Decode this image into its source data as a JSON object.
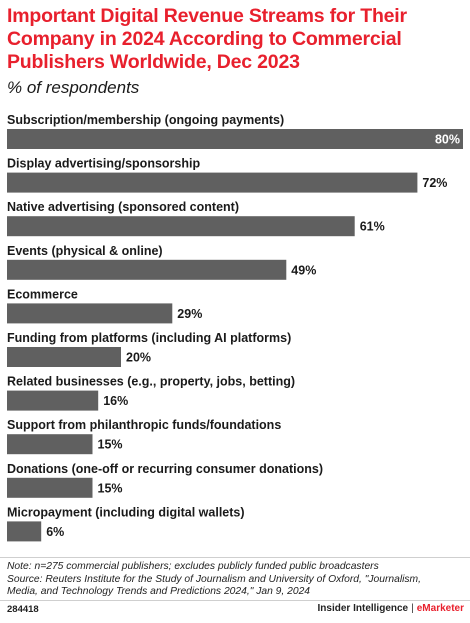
{
  "title": "Important Digital Revenue Streams for Their Company in 2024 According to Commercial Publishers Worldwide, Dec 2023",
  "subtitle": "% of respondents",
  "colors": {
    "title": "#e8202d",
    "bar": "#606060",
    "label": "#1a1a1a",
    "inside_value": "#ffffff"
  },
  "chart_data": {
    "type": "bar",
    "orientation": "horizontal",
    "categories": [
      "Subscription/membership (ongoing payments)",
      "Display advertising/sponsorship",
      "Native advertising (sponsored content)",
      "Events (physical & online)",
      "Ecommerce",
      "Funding from platforms (including AI platforms)",
      "Related businesses (e.g., property, jobs, betting)",
      "Support from philanthropic funds/foundations",
      "Donations (one-off or recurring consumer donations)",
      "Micropayment (including digital wallets)"
    ],
    "values": [
      80,
      72,
      61,
      49,
      29,
      20,
      16,
      15,
      15,
      6
    ],
    "value_labels": [
      "80%",
      "72%",
      "61%",
      "49%",
      "29%",
      "20%",
      "16%",
      "15%",
      "15%",
      "6%"
    ],
    "xlim": [
      0,
      80
    ]
  },
  "footer": {
    "note": "Note: n=275 commercial publishers; excludes publicly funded public broadcasters",
    "source_line1": "Source: Reuters Institute for the Study of Journalism and University of Oxford, \"Journalism,",
    "source_line2": "Media, and Technology Trends and Predictions 2024,\" Jan 9, 2024",
    "chart_id": "284418",
    "brand_left": "Insider Intelligence",
    "brand_sep": "|",
    "brand_right": "eMarketer"
  }
}
